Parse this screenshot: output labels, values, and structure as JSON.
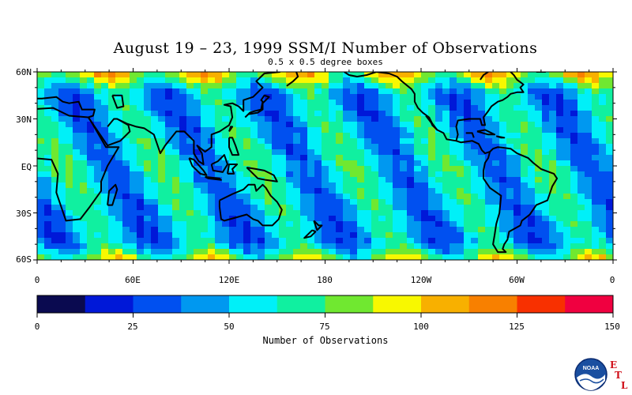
{
  "title": "August 19 – 23, 1999 SSM/I Number of Observations",
  "subtitle": "0.5 x 0.5 degree boxes",
  "lat_labels": [
    "60N",
    "30N",
    "EQ",
    "30S",
    "60S"
  ],
  "lon_labels": [
    "0",
    "60E",
    "120E",
    "180",
    "120W",
    "60W",
    "0"
  ],
  "colorbar": {
    "title": "Number of Observations",
    "ticks": [
      "0",
      "25",
      "50",
      "75",
      "100",
      "125",
      "150"
    ],
    "range": [
      0,
      150
    ],
    "colors": [
      "#0a0a50",
      "#0018d8",
      "#0050f0",
      "#0098f0",
      "#00f0f8",
      "#10f0a0",
      "#70e830",
      "#f8f800",
      "#f8b000",
      "#f88000",
      "#f83000",
      "#f00040"
    ]
  },
  "map": {
    "lat_range": [
      -60,
      60
    ],
    "lon_range": [
      0,
      360
    ],
    "swath_bands": 12
  },
  "logo": {
    "icon": "noaa-logo-icon",
    "text": "NOAA",
    "letters": [
      "E",
      "T",
      "L"
    ]
  }
}
